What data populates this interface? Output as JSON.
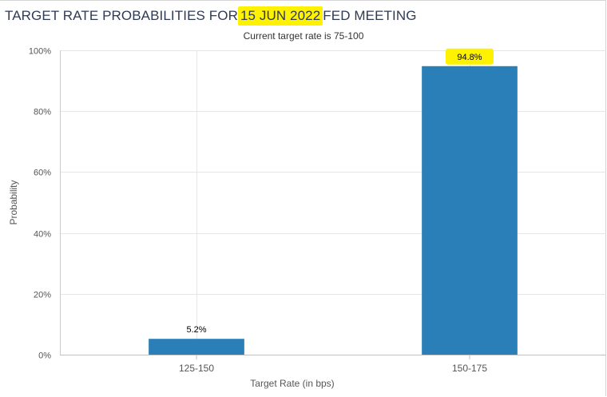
{
  "header": {
    "title_pre": "TARGET RATE PROBABILITIES FOR ",
    "title_date": "15 JUN 2022",
    "title_post": " FED MEETING",
    "subtitle": "Current target rate is 75-100"
  },
  "colors": {
    "bar": "#2b7fb8",
    "highlight": "#fff200",
    "grid": "#e6e6e6",
    "axis_text": "#555555"
  },
  "chart_data": {
    "type": "bar",
    "categories": [
      "125-150",
      "150-175"
    ],
    "values": [
      5.2,
      94.8
    ],
    "value_labels": [
      "5.2%",
      "94.8%"
    ],
    "highlighted_label": "94.8%",
    "xlabel": "Target Rate (in bps)",
    "ylabel": "Probability",
    "ylim": [
      0,
      100
    ],
    "yticks": [
      0,
      20,
      40,
      60,
      80,
      100
    ],
    "ytick_labels": [
      "0%",
      "20%",
      "40%",
      "60%",
      "80%",
      "100%"
    ],
    "grid": true
  }
}
